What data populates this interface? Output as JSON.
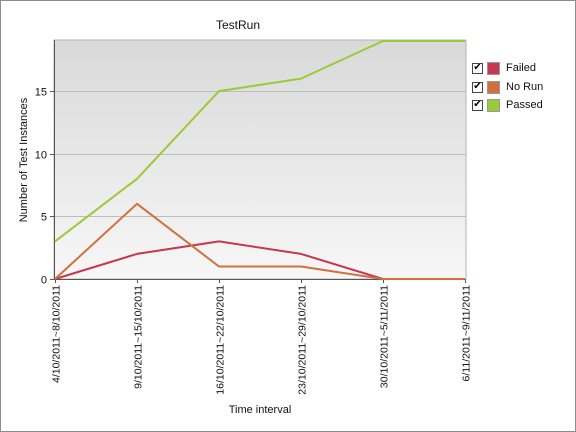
{
  "chart_data": {
    "type": "line",
    "title": "TestRun",
    "xlabel": "Time interval",
    "ylabel": "Number of Test Instances",
    "categories": [
      "4/10/2011~8/10/2011",
      "9/10/2011~15/10/2011",
      "16/10/2011~22/10/2011",
      "23/10/2011~29/10/2011",
      "30/10/2011~5/11/2011",
      "6/11/2011~9/11/2011"
    ],
    "ylim": [
      0,
      19
    ],
    "yticks": [
      0,
      5,
      10,
      15
    ],
    "grid": true,
    "legend_position": "right",
    "series": [
      {
        "name": "Failed",
        "color": "#c8364f",
        "checked": true,
        "values": [
          0,
          2,
          3,
          2,
          0,
          0
        ]
      },
      {
        "name": "No Run",
        "color": "#d0703a",
        "checked": true,
        "values": [
          0,
          6,
          1,
          1,
          0,
          0
        ]
      },
      {
        "name": "Passed",
        "color": "#9acb34",
        "checked": true,
        "values": [
          3,
          8,
          15,
          16,
          19,
          19
        ]
      }
    ]
  }
}
